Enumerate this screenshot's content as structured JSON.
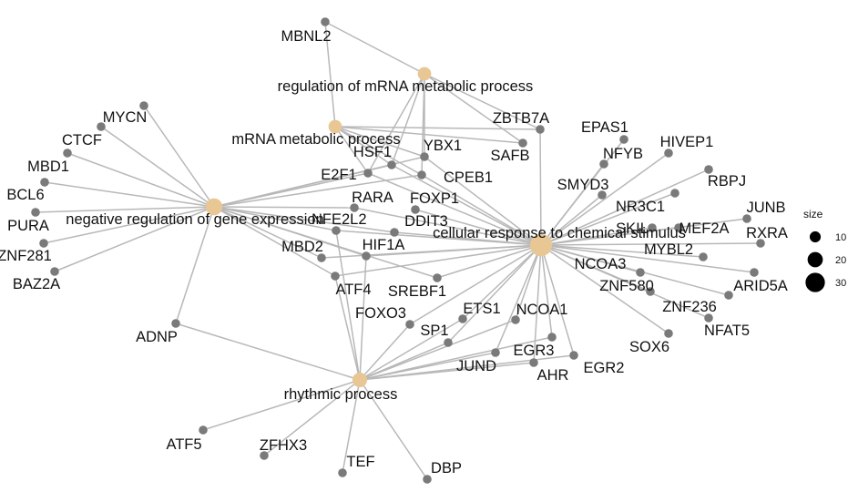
{
  "colors": {
    "category": "#e8c795",
    "gene": "#7a7a7a",
    "edge": "#b8b8b8",
    "legend": "#000000"
  },
  "legend": {
    "title": "size",
    "items": [
      {
        "value": 10,
        "label": "10"
      },
      {
        "value": 20,
        "label": "20"
      },
      {
        "value": 30,
        "label": "30"
      }
    ]
  },
  "categories": [
    {
      "id": "c_rmm",
      "label": "regulation of mRNA metabolic process",
      "size": 14
    },
    {
      "id": "c_mmp",
      "label": "mRNA metabolic process",
      "size": 14
    },
    {
      "id": "c_ngr",
      "label": "negative regulation of gene expression",
      "size": 22
    },
    {
      "id": "c_crc",
      "label": "cellular response to chemical stimulus",
      "size": 34
    },
    {
      "id": "c_rhy",
      "label": "rhythmic process",
      "size": 17
    }
  ],
  "genes": [
    {
      "id": "MBNL2",
      "label": "MBNL2"
    },
    {
      "id": "ZBTB7A",
      "label": "ZBTB7A"
    },
    {
      "id": "SAFB",
      "label": "SAFB"
    },
    {
      "id": "HSF1",
      "label": "HSF1"
    },
    {
      "id": "YBX1",
      "label": "YBX1"
    },
    {
      "id": "E2F1",
      "label": "E2F1"
    },
    {
      "id": "CPEB1",
      "label": "CPEB1"
    },
    {
      "id": "MYCN",
      "label": "MYCN"
    },
    {
      "id": "CTCF",
      "label": "CTCF"
    },
    {
      "id": "MBD1",
      "label": "MBD1"
    },
    {
      "id": "BCL6",
      "label": "BCL6"
    },
    {
      "id": "PURA",
      "label": "PURA"
    },
    {
      "id": "ZNF281",
      "label": "ZNF281"
    },
    {
      "id": "BAZ2A",
      "label": "BAZ2A"
    },
    {
      "id": "ADNP",
      "label": "ADNP"
    },
    {
      "id": "RARA",
      "label": "RARA"
    },
    {
      "id": "FOXP1",
      "label": "FOXP1"
    },
    {
      "id": "DDIT3",
      "label": "DDIT3"
    },
    {
      "id": "MBD2",
      "label": "MBD2"
    },
    {
      "id": "HIF1A",
      "label": "HIF1A"
    },
    {
      "id": "ATF4",
      "label": "ATF4"
    },
    {
      "id": "SREBF1",
      "label": "SREBF1"
    },
    {
      "id": "FOXO3",
      "label": "FOXO3"
    },
    {
      "id": "ETS1",
      "label": "ETS1"
    },
    {
      "id": "SP1",
      "label": "SP1"
    },
    {
      "id": "NCOA1",
      "label": "NCOA1"
    },
    {
      "id": "JUND",
      "label": "JUND"
    },
    {
      "id": "EGR3",
      "label": "EGR3"
    },
    {
      "id": "AHR",
      "label": "AHR"
    },
    {
      "id": "EGR2",
      "label": "EGR2"
    },
    {
      "id": "EPAS1",
      "label": "EPAS1"
    },
    {
      "id": "NFYB",
      "label": "NFYB"
    },
    {
      "id": "HIVEP1",
      "label": "HIVEP1"
    },
    {
      "id": "SMYD3",
      "label": "SMYD3"
    },
    {
      "id": "NR3C1",
      "label": "NR3C1"
    },
    {
      "id": "RBPJ",
      "label": "RBPJ"
    },
    {
      "id": "JUNB",
      "label": "JUNB"
    },
    {
      "id": "SKIL",
      "label": "SKIL"
    },
    {
      "id": "MEF2A",
      "label": "MEF2A"
    },
    {
      "id": "RXRA",
      "label": "RXRA"
    },
    {
      "id": "MYBL2",
      "label": "MYBL2"
    },
    {
      "id": "NCOA3",
      "label": "NCOA3"
    },
    {
      "id": "ARID5A",
      "label": "ARID5A"
    },
    {
      "id": "ZNF580",
      "label": "ZNF580"
    },
    {
      "id": "ZNF236",
      "label": "ZNF236"
    },
    {
      "id": "NFAT5",
      "label": "NFAT5"
    },
    {
      "id": "SOX6",
      "label": "SOX6"
    },
    {
      "id": "ATF5",
      "label": "ATF5"
    },
    {
      "id": "ZFHX3",
      "label": "ZFHX3"
    },
    {
      "id": "TEF",
      "label": "TEF"
    },
    {
      "id": "DBP",
      "label": "DBP"
    },
    {
      "id": "NFE2L2",
      "label": "NFE2L2"
    }
  ],
  "edges": [
    [
      "c_rmm",
      "MBNL2"
    ],
    [
      "c_rmm",
      "ZBTB7A"
    ],
    [
      "c_rmm",
      "SAFB"
    ],
    [
      "c_rmm",
      "HSF1"
    ],
    [
      "c_rmm",
      "YBX1"
    ],
    [
      "c_rmm",
      "E2F1"
    ],
    [
      "c_rmm",
      "CPEB1"
    ],
    [
      "c_mmp",
      "MBNL2"
    ],
    [
      "c_mmp",
      "SAFB"
    ],
    [
      "c_mmp",
      "HSF1"
    ],
    [
      "c_mmp",
      "YBX1"
    ],
    [
      "c_mmp",
      "CPEB1"
    ],
    [
      "c_mmp",
      "ZBTB7A"
    ],
    [
      "c_mmp",
      "E2F1"
    ],
    [
      "c_ngr",
      "MYCN"
    ],
    [
      "c_ngr",
      "CTCF"
    ],
    [
      "c_ngr",
      "MBD1"
    ],
    [
      "c_ngr",
      "BCL6"
    ],
    [
      "c_ngr",
      "PURA"
    ],
    [
      "c_ngr",
      "ZNF281"
    ],
    [
      "c_ngr",
      "BAZ2A"
    ],
    [
      "c_ngr",
      "ADNP"
    ],
    [
      "c_ngr",
      "HSF1"
    ],
    [
      "c_ngr",
      "YBX1"
    ],
    [
      "c_ngr",
      "E2F1"
    ],
    [
      "c_ngr",
      "CPEB1"
    ],
    [
      "c_ngr",
      "RARA"
    ],
    [
      "c_ngr",
      "NFE2L2"
    ],
    [
      "c_ngr",
      "MBD2"
    ],
    [
      "c_ngr",
      "HIF1A"
    ],
    [
      "c_ngr",
      "ATF4"
    ],
    [
      "c_ngr",
      "SREBF1"
    ],
    [
      "c_ngr",
      "DDIT3"
    ],
    [
      "c_crc",
      "ZBTB7A"
    ],
    [
      "c_crc",
      "HSF1"
    ],
    [
      "c_crc",
      "YBX1"
    ],
    [
      "c_crc",
      "E2F1"
    ],
    [
      "c_crc",
      "CPEB1"
    ],
    [
      "c_crc",
      "RARA"
    ],
    [
      "c_crc",
      "FOXP1"
    ],
    [
      "c_crc",
      "DDIT3"
    ],
    [
      "c_crc",
      "NFE2L2"
    ],
    [
      "c_crc",
      "MBD2"
    ],
    [
      "c_crc",
      "HIF1A"
    ],
    [
      "c_crc",
      "ATF4"
    ],
    [
      "c_crc",
      "SREBF1"
    ],
    [
      "c_crc",
      "FOXO3"
    ],
    [
      "c_crc",
      "ETS1"
    ],
    [
      "c_crc",
      "SP1"
    ],
    [
      "c_crc",
      "NCOA1"
    ],
    [
      "c_crc",
      "JUND"
    ],
    [
      "c_crc",
      "EGR3"
    ],
    [
      "c_crc",
      "AHR"
    ],
    [
      "c_crc",
      "EGR2"
    ],
    [
      "c_crc",
      "EPAS1"
    ],
    [
      "c_crc",
      "NFYB"
    ],
    [
      "c_crc",
      "HIVEP1"
    ],
    [
      "c_crc",
      "SMYD3"
    ],
    [
      "c_crc",
      "NR3C1"
    ],
    [
      "c_crc",
      "RBPJ"
    ],
    [
      "c_crc",
      "JUNB"
    ],
    [
      "c_crc",
      "SKIL"
    ],
    [
      "c_crc",
      "MEF2A"
    ],
    [
      "c_crc",
      "RXRA"
    ],
    [
      "c_crc",
      "MYBL2"
    ],
    [
      "c_crc",
      "NCOA3"
    ],
    [
      "c_crc",
      "ARID5A"
    ],
    [
      "c_crc",
      "ZNF580"
    ],
    [
      "c_crc",
      "ZNF236"
    ],
    [
      "c_crc",
      "NFAT5"
    ],
    [
      "c_crc",
      "SOX6"
    ],
    [
      "c_rhy",
      "ADNP"
    ],
    [
      "c_rhy",
      "ATF4"
    ],
    [
      "c_rhy",
      "HIF1A"
    ],
    [
      "c_rhy",
      "FOXO3"
    ],
    [
      "c_rhy",
      "ETS1"
    ],
    [
      "c_rhy",
      "SP1"
    ],
    [
      "c_rhy",
      "NCOA1"
    ],
    [
      "c_rhy",
      "JUND"
    ],
    [
      "c_rhy",
      "EGR3"
    ],
    [
      "c_rhy",
      "AHR"
    ],
    [
      "c_rhy",
      "EGR2"
    ],
    [
      "c_rhy",
      "ATF5"
    ],
    [
      "c_rhy",
      "ZFHX3"
    ],
    [
      "c_rhy",
      "TEF"
    ],
    [
      "c_rhy",
      "DBP"
    ],
    [
      "c_rhy",
      "NFE2L2"
    ]
  ]
}
